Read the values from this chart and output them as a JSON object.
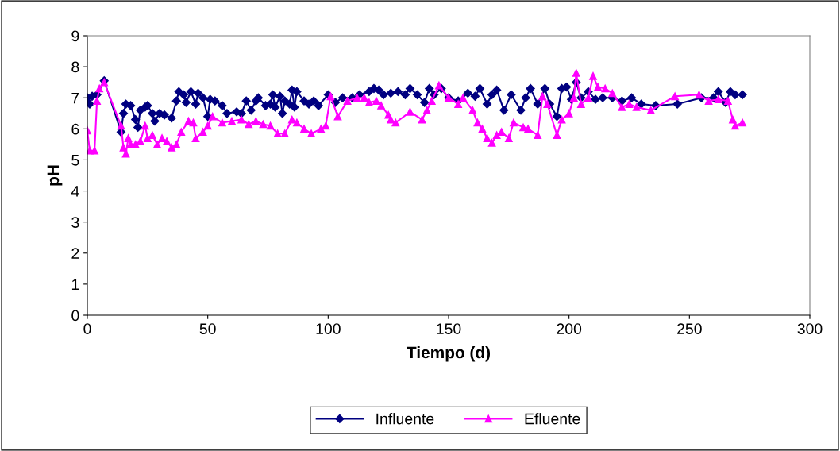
{
  "chart_data": {
    "type": "line",
    "xlabel": "Tiempo (d)",
    "ylabel": "pH",
    "xlim": [
      0,
      300
    ],
    "xticks": [
      0,
      50,
      100,
      150,
      200,
      250,
      300
    ],
    "ylim": [
      0,
      9
    ],
    "yticks": [
      0,
      1,
      2,
      3,
      4,
      5,
      6,
      7,
      8,
      9
    ],
    "grid": false,
    "legend": "bottom",
    "line_style": "solid",
    "series": [
      {
        "name": "Influente",
        "color": "#000080",
        "marker": "diamond",
        "x": [
          0,
          1,
          2,
          4,
          7,
          14,
          15,
          16,
          18,
          20,
          21,
          22,
          24,
          25,
          27,
          28,
          30,
          32,
          35,
          37,
          38,
          40,
          41,
          43,
          45,
          46,
          48,
          50,
          51,
          53,
          56,
          58,
          62,
          64,
          66,
          68,
          70,
          71,
          74,
          76,
          77,
          78,
          80,
          81,
          82,
          84,
          85,
          86,
          87,
          90,
          92,
          94,
          96,
          100,
          103,
          106,
          110,
          113,
          117,
          119,
          121,
          123,
          126,
          129,
          132,
          134,
          137,
          140,
          142,
          144,
          147,
          150,
          154,
          158,
          161,
          163,
          166,
          168,
          170,
          173,
          176,
          180,
          182,
          184,
          187,
          190,
          192,
          195,
          197,
          199,
          201,
          203,
          205,
          208,
          211,
          214,
          218,
          222,
          226,
          230,
          236,
          245,
          255,
          260,
          262,
          265,
          267,
          269,
          272
        ],
        "values": [
          7.0,
          6.8,
          7.05,
          7.1,
          7.55,
          5.9,
          6.5,
          6.8,
          6.75,
          6.3,
          6.05,
          6.6,
          6.7,
          6.75,
          6.5,
          6.25,
          6.5,
          6.45,
          6.35,
          6.9,
          7.2,
          7.1,
          6.85,
          7.2,
          6.8,
          7.15,
          7.0,
          6.4,
          6.95,
          6.9,
          6.75,
          6.5,
          6.55,
          6.5,
          6.9,
          6.6,
          6.9,
          7.0,
          6.75,
          6.8,
          7.1,
          6.7,
          7.05,
          6.5,
          6.9,
          6.8,
          7.25,
          6.7,
          7.2,
          6.9,
          6.8,
          6.9,
          6.75,
          7.1,
          6.85,
          7.0,
          7.0,
          7.1,
          7.2,
          7.3,
          7.25,
          7.1,
          7.15,
          7.2,
          7.1,
          7.3,
          7.1,
          6.85,
          7.3,
          7.1,
          7.3,
          7.0,
          6.9,
          7.15,
          7.05,
          7.3,
          6.8,
          7.1,
          7.25,
          6.6,
          7.1,
          6.6,
          7.0,
          7.3,
          6.8,
          7.3,
          6.8,
          6.4,
          7.3,
          7.35,
          6.95,
          7.5,
          7.0,
          7.2,
          6.95,
          7.0,
          7.0,
          6.9,
          7.0,
          6.8,
          6.75,
          6.8,
          7.0,
          7.0,
          7.2,
          6.85,
          7.2,
          7.1,
          7.1
        ]
      },
      {
        "name": "Efluente",
        "color": "#ff00ff",
        "marker": "triangle",
        "x": [
          0,
          1,
          3,
          4,
          5,
          7,
          14,
          15,
          16,
          17,
          18,
          20,
          22,
          24,
          25,
          27,
          29,
          31,
          33,
          35,
          37,
          39,
          42,
          44,
          45,
          48,
          50,
          52,
          56,
          60,
          64,
          67,
          70,
          73,
          76,
          79,
          82,
          85,
          87,
          90,
          93,
          97,
          99,
          101,
          104,
          108,
          112,
          115,
          117,
          120,
          122,
          125,
          126,
          128,
          134,
          139,
          141,
          143,
          146,
          150,
          154,
          156,
          160,
          162,
          164,
          166,
          168,
          170,
          172,
          175,
          177,
          181,
          183,
          187,
          189,
          191,
          195,
          197,
          200,
          202,
          203,
          205,
          208,
          210,
          212,
          215,
          218,
          222,
          225,
          228,
          234,
          244,
          254,
          258,
          262,
          266,
          268,
          269,
          272
        ],
        "values": [
          5.95,
          5.3,
          5.3,
          6.9,
          7.3,
          7.5,
          6.1,
          5.4,
          5.2,
          5.7,
          5.5,
          5.5,
          5.6,
          6.1,
          5.7,
          5.8,
          5.5,
          5.7,
          5.6,
          5.4,
          5.5,
          5.9,
          6.25,
          6.2,
          5.7,
          5.9,
          6.1,
          6.4,
          6.2,
          6.25,
          6.3,
          6.15,
          6.25,
          6.15,
          6.1,
          5.85,
          5.85,
          6.3,
          6.2,
          6.0,
          5.85,
          6.0,
          6.1,
          7.05,
          6.4,
          6.9,
          7.0,
          7.0,
          6.85,
          6.9,
          6.75,
          6.45,
          6.3,
          6.2,
          6.55,
          6.3,
          6.6,
          6.9,
          7.4,
          7.0,
          6.8,
          7.0,
          6.6,
          6.2,
          6.0,
          5.7,
          5.55,
          5.8,
          5.9,
          5.7,
          6.2,
          6.05,
          6.0,
          5.8,
          7.05,
          6.8,
          5.8,
          6.3,
          6.5,
          7.0,
          7.8,
          6.8,
          7.0,
          7.7,
          7.35,
          7.3,
          7.15,
          6.7,
          6.8,
          6.7,
          6.6,
          7.05,
          7.1,
          6.9,
          6.95,
          6.9,
          6.3,
          6.1,
          6.2
        ]
      }
    ]
  }
}
